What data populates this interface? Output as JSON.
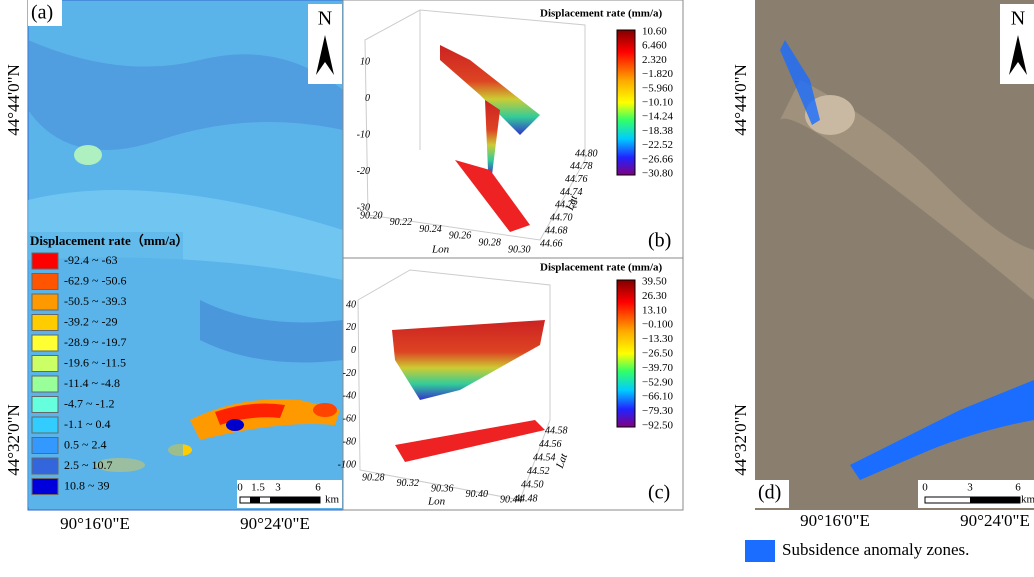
{
  "panel_a": {
    "label": "(a)",
    "north": "N",
    "lat_labels": [
      "44°44'0\"N",
      "44°32'0\"N"
    ],
    "lon_labels": [
      "90°16'0\"E",
      "90°24'0\"E"
    ],
    "legend_title": "Displacement rate（mm/a）",
    "legend": [
      {
        "label": "-92.4 ~ -63",
        "color": "#ff0000"
      },
      {
        "label": "-62.9 ~ -50.6",
        "color": "#ff5500"
      },
      {
        "label": "-50.5 ~ -39.3",
        "color": "#ff9900"
      },
      {
        "label": "-39.2 ~ -29",
        "color": "#ffcc00"
      },
      {
        "label": "-28.9 ~ -19.7",
        "color": "#ffff33"
      },
      {
        "label": "-19.6 ~ -11.5",
        "color": "#ccff66"
      },
      {
        "label": "-11.4 ~ -4.8",
        "color": "#99ff99"
      },
      {
        "label": "-4.7 ~ -1.2",
        "color": "#66ffdd"
      },
      {
        "label": "-1.1 ~ 0.4",
        "color": "#33ccff"
      },
      {
        "label": "0.5 ~ 2.4",
        "color": "#3399ff"
      },
      {
        "label": "2.5 ~ 10.7",
        "color": "#3366dd"
      },
      {
        "label": "10.8 ~ 39",
        "color": "#0000dd"
      }
    ],
    "scale": [
      "0",
      "1.5",
      "3",
      "6"
    ],
    "scale_unit": "km"
  },
  "panel_b": {
    "label": "(b)",
    "colorbar_title": "Displacement rate (mm/a)",
    "colorbar_ticks": [
      "10.60",
      "6.460",
      "2.320",
      "−1.820",
      "−5.960",
      "−10.10",
      "−14.24",
      "−18.38",
      "−22.52",
      "−26.66",
      "−30.80"
    ],
    "z_ticks": [
      "10",
      "0",
      "-10",
      "-20",
      "-30"
    ],
    "x_ticks": [
      "90.20",
      "90.22",
      "90.24",
      "90.26",
      "90.28",
      "90.30"
    ],
    "x_label": "Lon",
    "y_ticks": [
      "44.80",
      "44.78",
      "44.76",
      "44.74",
      "44.72",
      "44.70",
      "44.68",
      "44.66"
    ],
    "y_label": "Lat"
  },
  "panel_c": {
    "label": "(c)",
    "colorbar_title": "Displacement rate (mm/a)",
    "colorbar_ticks": [
      "39.50",
      "26.30",
      "13.10",
      "−0.100",
      "−13.30",
      "−26.50",
      "−39.70",
      "−52.90",
      "−66.10",
      "−79.30",
      "−92.50"
    ],
    "z_ticks": [
      "40",
      "20",
      "0",
      "-20",
      "-40",
      "-60",
      "-80",
      "-100"
    ],
    "x_ticks": [
      "90.28",
      "90.32",
      "90.36",
      "90.40",
      "90.44"
    ],
    "x_label": "Lon",
    "y_ticks": [
      "44.58",
      "44.56",
      "44.54",
      "44.52",
      "44.50",
      "44.48"
    ],
    "y_label": "Lat"
  },
  "panel_d": {
    "label": "(d)",
    "north": "N",
    "lat_labels": [
      "44°44'0\"N",
      "44°32'0\"N"
    ],
    "lon_labels": [
      "90°16'0\"E",
      "90°24'0\"E"
    ],
    "scale": [
      "0",
      "3",
      "6"
    ],
    "scale_unit": "km",
    "legend": "Subsidence anomaly zones."
  }
}
